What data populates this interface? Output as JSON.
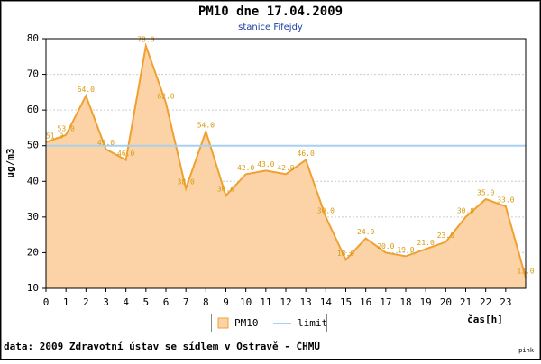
{
  "chart_data": {
    "type": "area",
    "title": "PM10 dne 17.04.2009",
    "subtitle": "stanice Fifejdy",
    "y_label": "ug/m3",
    "x_label": "čas[h]",
    "footer": "data: 2009 Zdravotní ústav se sídlem v Ostravě - ČHMÚ",
    "corner_text": "pink",
    "x": [
      0,
      1,
      2,
      3,
      4,
      5,
      6,
      7,
      8,
      9,
      10,
      11,
      12,
      13,
      14,
      15,
      16,
      17,
      18,
      19,
      20,
      21,
      22,
      23,
      24
    ],
    "series": [
      {
        "name": "PM10",
        "color": "#f0a030",
        "fill": "#fcd3a6",
        "values": [
          51,
          53,
          64,
          49,
          46,
          78,
          62,
          38,
          54,
          36,
          42,
          43,
          42,
          46,
          30,
          18,
          24,
          20,
          19,
          21,
          23,
          30,
          35,
          33,
          13
        ],
        "value_labels": [
          "51.0",
          "53.0",
          "64.0",
          "49.0",
          "46.0",
          "78.0",
          "62.0",
          "38.0",
          "54.0",
          "36.0",
          "42.0",
          "43.0",
          "42.0",
          "46.0",
          "30.0",
          "18.0",
          "24.0",
          "20.0",
          "19.0",
          "21.0",
          "23.0",
          "30.0",
          "35.0",
          "33.0",
          "13.0"
        ]
      }
    ],
    "limit": {
      "name": "limit",
      "value": 50,
      "color": "#a8d0f0"
    },
    "xlim": [
      0,
      24
    ],
    "xticks": [
      0,
      1,
      2,
      3,
      4,
      5,
      6,
      7,
      8,
      9,
      10,
      11,
      12,
      13,
      14,
      15,
      16,
      17,
      18,
      19,
      20,
      21,
      22,
      23
    ],
    "ylim": [
      10,
      80
    ],
    "yticks": [
      10,
      20,
      30,
      40,
      50,
      60,
      70,
      80
    ],
    "grid": true
  }
}
